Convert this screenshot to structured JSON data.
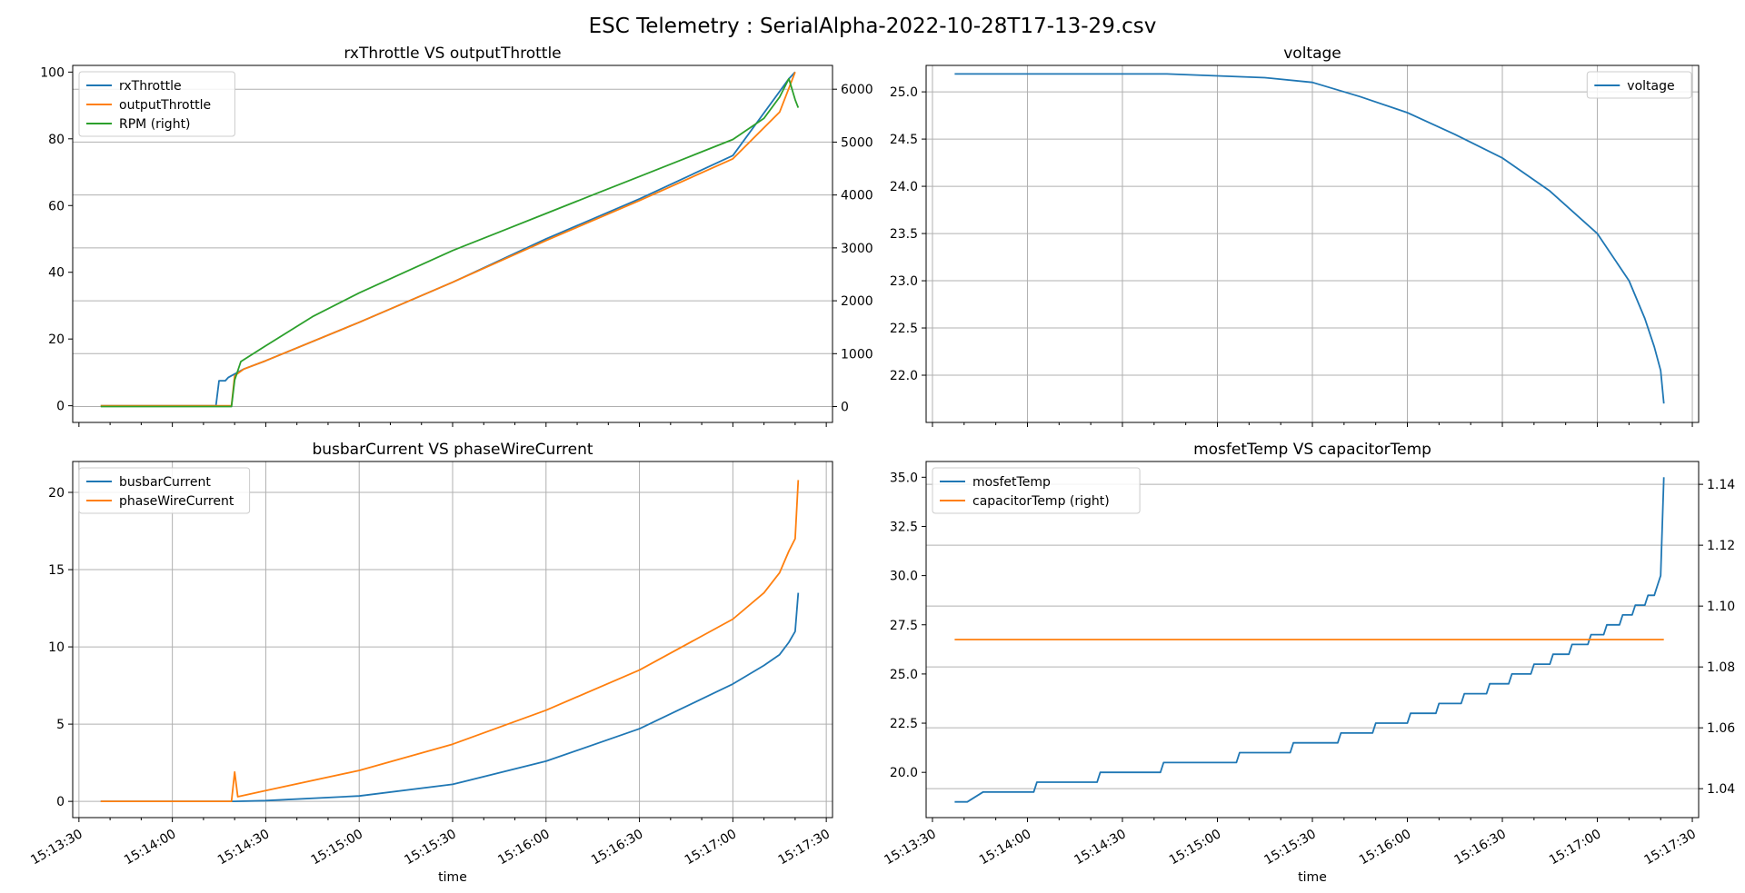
{
  "title": "ESC Telemetry : SerialAlpha-2022-10-28T17-13-29.csv",
  "chart_data": [
    {
      "type": "line",
      "title": "rxThrottle VS outputThrottle",
      "xlabel": "",
      "x_range": [
        "15:13:30",
        "15:17:30"
      ],
      "x_ticks": [
        "15:13:30",
        "15:14:00",
        "15:14:30",
        "15:15:00",
        "15:15:30",
        "15:16:00",
        "15:16:30",
        "15:17:00",
        "15:17:30"
      ],
      "x_tick_labels_visible": false,
      "ylim": [
        -5,
        102
      ],
      "y_ticks": [
        "0",
        "20",
        "40",
        "60",
        "80",
        "100"
      ],
      "y2lim": [
        -300,
        6450
      ],
      "y2_ticks": [
        "0",
        "1000",
        "2000",
        "3000",
        "4000",
        "5000",
        "6000"
      ],
      "grid": "right-axis horizontal",
      "legend": "top-left",
      "series": [
        {
          "name": "rxThrottle",
          "axis": "left",
          "color": "#1f77b4",
          "points": [
            [
              "15:13:37",
              0
            ],
            [
              "15:14:14",
              0
            ],
            [
              "15:14:15",
              7.5
            ],
            [
              "15:14:17",
              7.5
            ],
            [
              "15:14:18",
              8.5
            ],
            [
              "15:14:19",
              9
            ],
            [
              "15:14:20",
              9.5
            ],
            [
              "15:14:23",
              11
            ],
            [
              "15:14:30",
              13.5
            ],
            [
              "15:15:00",
              25
            ],
            [
              "15:15:30",
              37
            ],
            [
              "15:16:00",
              50
            ],
            [
              "15:16:30",
              62
            ],
            [
              "15:17:00",
              75
            ],
            [
              "15:17:18",
              98
            ],
            [
              "15:17:20",
              100
            ]
          ]
        },
        {
          "name": "outputThrottle",
          "axis": "left",
          "color": "#ff7f0e",
          "points": [
            [
              "15:13:37",
              0
            ],
            [
              "15:14:19",
              0
            ],
            [
              "15:14:20",
              9
            ],
            [
              "15:14:23",
              11
            ],
            [
              "15:14:30",
              13.5
            ],
            [
              "15:15:00",
              25
            ],
            [
              "15:15:30",
              37
            ],
            [
              "15:16:00",
              49.5
            ],
            [
              "15:16:30",
              61.5
            ],
            [
              "15:17:00",
              74
            ],
            [
              "15:17:15",
              88
            ],
            [
              "15:17:20",
              100
            ]
          ]
        },
        {
          "name": "RPM (right)",
          "axis": "right",
          "color": "#2ca02c",
          "points": [
            [
              "15:13:37",
              0
            ],
            [
              "15:14:19",
              0
            ],
            [
              "15:14:20",
              500
            ],
            [
              "15:14:22",
              850
            ],
            [
              "15:14:30",
              1150
            ],
            [
              "15:14:45",
              1700
            ],
            [
              "15:15:00",
              2150
            ],
            [
              "15:15:15",
              2550
            ],
            [
              "15:15:30",
              2950
            ],
            [
              "15:15:45",
              3300
            ],
            [
              "15:16:00",
              3650
            ],
            [
              "15:16:15",
              4000
            ],
            [
              "15:16:30",
              4350
            ],
            [
              "15:16:45",
              4700
            ],
            [
              "15:17:00",
              5050
            ],
            [
              "15:17:10",
              5450
            ],
            [
              "15:17:15",
              5850
            ],
            [
              "15:17:18",
              6200
            ],
            [
              "15:17:20",
              5800
            ],
            [
              "15:17:21",
              5650
            ]
          ]
        }
      ]
    },
    {
      "type": "line",
      "title": "voltage",
      "xlabel": "",
      "x_range": [
        "15:13:30",
        "15:17:30"
      ],
      "x_ticks": [
        "15:13:30",
        "15:14:00",
        "15:14:30",
        "15:15:00",
        "15:15:30",
        "15:16:00",
        "15:16:30",
        "15:17:00",
        "15:17:30"
      ],
      "x_tick_labels_visible": false,
      "ylim": [
        21.5,
        25.28
      ],
      "y_ticks": [
        "22.0",
        "22.5",
        "23.0",
        "23.5",
        "24.0",
        "24.5",
        "25.0"
      ],
      "grid": "both",
      "legend": "top-right",
      "series": [
        {
          "name": "voltage",
          "color": "#1f77b4",
          "points": [
            [
              "15:13:37",
              25.19
            ],
            [
              "15:14:44",
              25.19
            ],
            [
              "15:15:15",
              25.15
            ],
            [
              "15:15:30",
              25.1
            ],
            [
              "15:15:45",
              24.95
            ],
            [
              "15:16:00",
              24.78
            ],
            [
              "15:16:15",
              24.55
            ],
            [
              "15:16:30",
              24.3
            ],
            [
              "15:16:45",
              23.95
            ],
            [
              "15:17:00",
              23.5
            ],
            [
              "15:17:10",
              23.0
            ],
            [
              "15:17:15",
              22.6
            ],
            [
              "15:17:18",
              22.3
            ],
            [
              "15:17:20",
              22.05
            ],
            [
              "15:17:21",
              21.7
            ]
          ]
        }
      ]
    },
    {
      "type": "line",
      "title": "busbarCurrent VS phaseWireCurrent",
      "xlabel": "time",
      "x_range": [
        "15:13:30",
        "15:17:30"
      ],
      "x_ticks": [
        "15:13:30",
        "15:14:00",
        "15:14:30",
        "15:15:00",
        "15:15:30",
        "15:16:00",
        "15:16:30",
        "15:17:00",
        "15:17:30"
      ],
      "x_tick_labels_visible": true,
      "ylim": [
        -1.05,
        22
      ],
      "y_ticks": [
        "0",
        "5",
        "10",
        "15",
        "20"
      ],
      "grid": "both",
      "legend": "top-left",
      "series": [
        {
          "name": "busbarCurrent",
          "color": "#1f77b4",
          "points": [
            [
              "15:13:37",
              0
            ],
            [
              "15:14:20",
              0
            ],
            [
              "15:14:30",
              0.05
            ],
            [
              "15:15:00",
              0.35
            ],
            [
              "15:15:30",
              1.1
            ],
            [
              "15:16:00",
              2.6
            ],
            [
              "15:16:30",
              4.7
            ],
            [
              "15:17:00",
              7.6
            ],
            [
              "15:17:10",
              8.8
            ],
            [
              "15:17:15",
              9.5
            ],
            [
              "15:17:18",
              10.3
            ],
            [
              "15:17:20",
              11
            ],
            [
              "15:17:21",
              13.5
            ]
          ]
        },
        {
          "name": "phaseWireCurrent",
          "color": "#ff7f0e",
          "points": [
            [
              "15:13:37",
              0
            ],
            [
              "15:14:19",
              0
            ],
            [
              "15:14:20",
              1.9
            ],
            [
              "15:14:21",
              0.3
            ],
            [
              "15:14:30",
              0.7
            ],
            [
              "15:15:00",
              2.0
            ],
            [
              "15:15:30",
              3.7
            ],
            [
              "15:16:00",
              5.9
            ],
            [
              "15:16:30",
              8.5
            ],
            [
              "15:17:00",
              11.8
            ],
            [
              "15:17:10",
              13.5
            ],
            [
              "15:17:15",
              14.8
            ],
            [
              "15:17:18",
              16.2
            ],
            [
              "15:17:20",
              17
            ],
            [
              "15:17:21",
              20.8
            ]
          ]
        }
      ]
    },
    {
      "type": "line",
      "title": "mosfetTemp VS capacitorTemp",
      "xlabel": "time",
      "x_range": [
        "15:13:30",
        "15:17:30"
      ],
      "x_ticks": [
        "15:13:30",
        "15:14:00",
        "15:14:30",
        "15:15:00",
        "15:15:30",
        "15:16:00",
        "15:16:30",
        "15:17:00",
        "15:17:30"
      ],
      "x_tick_labels_visible": true,
      "ylim": [
        17.7,
        35.8
      ],
      "y_ticks": [
        "20.0",
        "22.5",
        "25.0",
        "27.5",
        "30.0",
        "32.5",
        "35.0"
      ],
      "y2lim": [
        1.0305,
        1.1475
      ],
      "y2_ticks": [
        "1.04",
        "1.06",
        "1.08",
        "1.10",
        "1.12",
        "1.14"
      ],
      "grid": "right-axis horizontal",
      "legend": "top-left",
      "series": [
        {
          "name": "mosfetTemp",
          "axis": "left",
          "color": "#1f77b4",
          "step": true,
          "points": [
            [
              "15:13:37",
              18.5
            ],
            [
              "15:13:41",
              18.5
            ],
            [
              "15:13:46",
              19
            ],
            [
              "15:14:02",
              19
            ],
            [
              "15:14:03",
              19.5
            ],
            [
              "15:14:22",
              19.5
            ],
            [
              "15:14:23",
              20
            ],
            [
              "15:14:42",
              20
            ],
            [
              "15:14:43",
              20.5
            ],
            [
              "15:15:06",
              20.5
            ],
            [
              "15:15:07",
              21
            ],
            [
              "15:15:23",
              21
            ],
            [
              "15:15:24",
              21.5
            ],
            [
              "15:15:38",
              21.5
            ],
            [
              "15:15:39",
              22
            ],
            [
              "15:15:49",
              22
            ],
            [
              "15:15:50",
              22.5
            ],
            [
              "15:16:00",
              22.5
            ],
            [
              "15:16:01",
              23
            ],
            [
              "15:16:09",
              23
            ],
            [
              "15:16:10",
              23.5
            ],
            [
              "15:16:17",
              23.5
            ],
            [
              "15:16:18",
              24
            ],
            [
              "15:16:25",
              24
            ],
            [
              "15:16:26",
              24.5
            ],
            [
              "15:16:32",
              24.5
            ],
            [
              "15:16:33",
              25
            ],
            [
              "15:16:39",
              25
            ],
            [
              "15:16:40",
              25.5
            ],
            [
              "15:16:45",
              25.5
            ],
            [
              "15:16:46",
              26
            ],
            [
              "15:16:51",
              26
            ],
            [
              "15:16:52",
              26.5
            ],
            [
              "15:16:57",
              26.5
            ],
            [
              "15:16:58",
              27
            ],
            [
              "15:17:02",
              27
            ],
            [
              "15:17:03",
              27.5
            ],
            [
              "15:17:07",
              27.5
            ],
            [
              "15:17:08",
              28
            ],
            [
              "15:17:11",
              28
            ],
            [
              "15:17:12",
              28.5
            ],
            [
              "15:17:15",
              28.5
            ],
            [
              "15:17:16",
              29
            ],
            [
              "15:17:18",
              29
            ],
            [
              "15:17:19",
              29.5
            ],
            [
              "15:17:20",
              30
            ],
            [
              "15:17:21",
              35
            ]
          ]
        },
        {
          "name": "capacitorTemp (right)",
          "axis": "right",
          "color": "#ff7f0e",
          "points": [
            [
              "15:13:37",
              1.089
            ],
            [
              "15:17:21",
              1.089
            ]
          ]
        }
      ]
    }
  ]
}
